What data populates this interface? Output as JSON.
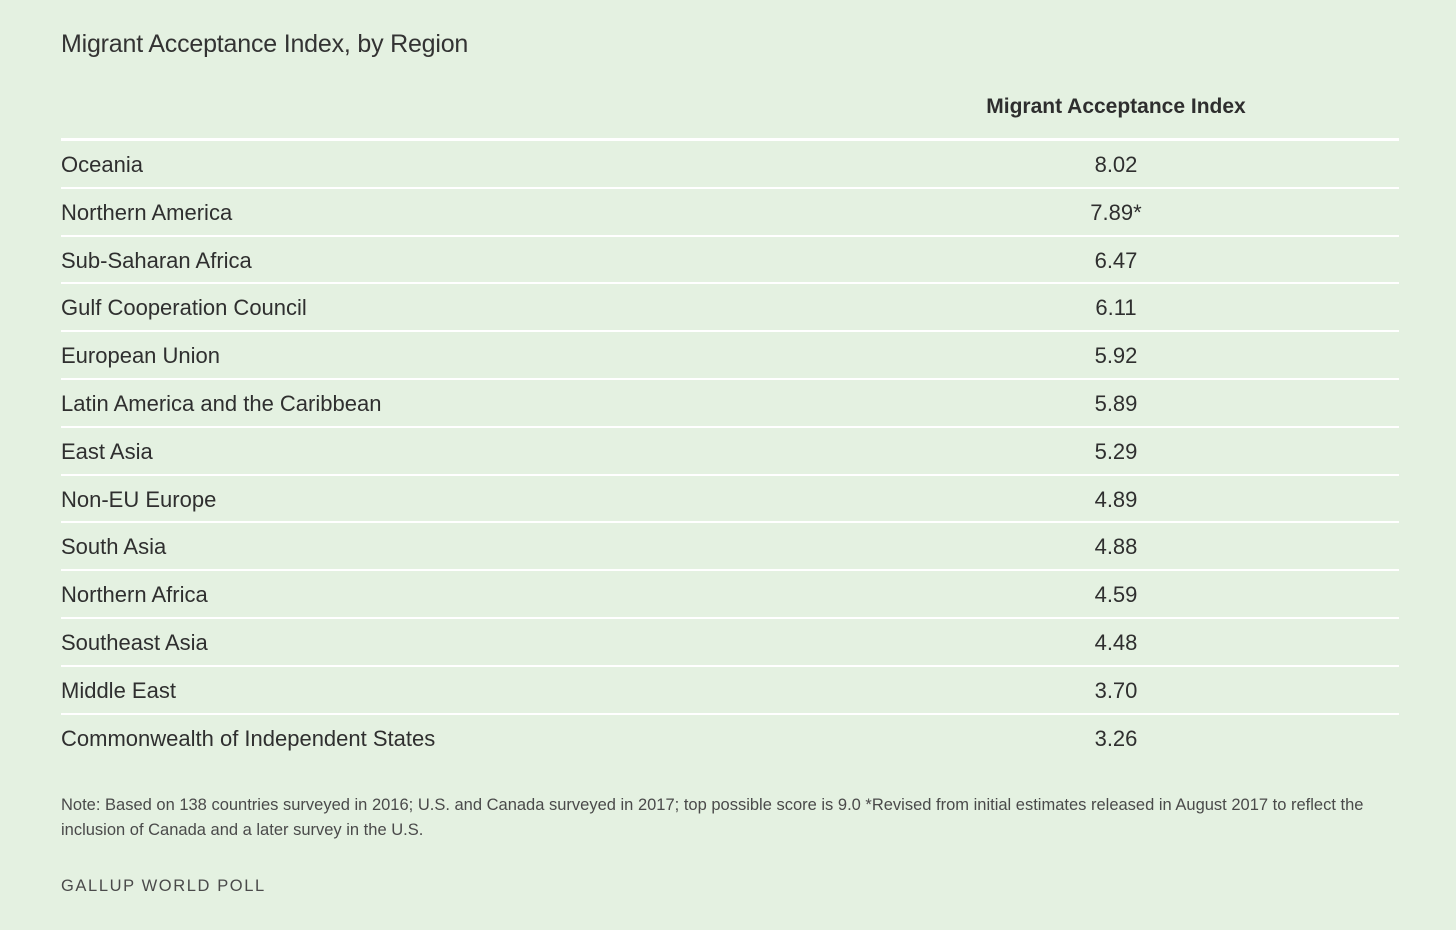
{
  "title": "Migrant Acceptance Index, by Region",
  "chart_data": {
    "type": "table",
    "title": "Migrant Acceptance Index, by Region",
    "columns": [
      "",
      "Migrant Acceptance Index"
    ],
    "rows": [
      {
        "region": "Oceania",
        "value": "8.02"
      },
      {
        "region": "Northern America",
        "value": "7.89*"
      },
      {
        "region": "Sub-Saharan Africa",
        "value": "6.47"
      },
      {
        "region": "Gulf Cooperation Council",
        "value": "6.11"
      },
      {
        "region": "European Union",
        "value": "5.92"
      },
      {
        "region": "Latin America and the Caribbean",
        "value": "5.89"
      },
      {
        "region": "East Asia",
        "value": "5.29"
      },
      {
        "region": "Non-EU Europe",
        "value": "4.89"
      },
      {
        "region": "South Asia",
        "value": "4.88"
      },
      {
        "region": "Northern Africa",
        "value": "4.59"
      },
      {
        "region": "Southeast Asia",
        "value": "4.48"
      },
      {
        "region": "Middle East",
        "value": "3.70"
      },
      {
        "region": "Commonwealth of Independent States",
        "value": "3.26"
      }
    ]
  },
  "note": "Note: Based on 138 countries surveyed in 2016; U.S. and Canada surveyed in 2017; top possible score is 9.0 *Revised from initial estimates released in August 2017 to reflect the inclusion of Canada and a later survey in the U.S.",
  "source": "GALLUP WORLD POLL",
  "colors": {
    "background": "#e4f1e1",
    "divider": "#ffffff",
    "text": "#2f2f2f"
  }
}
